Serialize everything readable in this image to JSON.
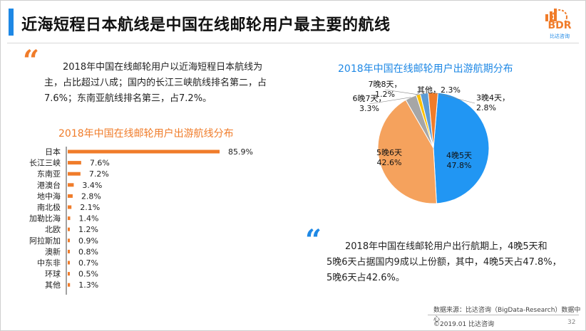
{
  "header": {
    "title": "近海短程日本航线是中国在线邮轮用户最主要的航线",
    "logo_text": "BDR",
    "logo_sub": "比达咨询",
    "accent_color": "#1e88e5",
    "logo_color": "#f07c2a"
  },
  "left_text": {
    "line1": "2018年中国在线邮轮用户以近海短程日本航线为",
    "line2": "主，占比超过八成；国内的长江三峡航线排名第二，占",
    "line3": "7.6%；东南亚航线排名第三，占7.2%。"
  },
  "right_text": {
    "line1": "2018年中国在线邮轮用户出行航期上，4晚5天和",
    "line2": "5晚6天占据国内9成以上份额，其中，4晚5天占47.8%，",
    "line3": "5晚6天占42.6%。"
  },
  "footer": {
    "source": "数据来源：比达咨询（BigData-Research）数据中心",
    "copyright": "©2019.01  比达咨询",
    "page": "32"
  },
  "chart_data": [
    {
      "type": "bar",
      "orientation": "horizontal",
      "title": "2018年中国在线邮轮用户出游航线分布",
      "categories": [
        "日本",
        "长江三峡",
        "东南亚",
        "港澳台",
        "地中海",
        "南北极",
        "加勒比海",
        "北欧",
        "阿拉斯加",
        "澳新",
        "中东非",
        "环球",
        "其他"
      ],
      "values": [
        85.9,
        7.6,
        7.2,
        3.4,
        2.8,
        2.1,
        1.4,
        1.2,
        0.9,
        0.8,
        0.7,
        0.5,
        1.3
      ],
      "value_labels": [
        "85.9%",
        "7.6%",
        "7.2%",
        "3.4%",
        "2.8%",
        "2.1%",
        "1.4%",
        "1.2%",
        "0.9%",
        "0.8%",
        "0.7%",
        "0.5%",
        "1.3%"
      ],
      "color": "#f07c2a",
      "xlim": [
        0,
        100
      ],
      "grid": false
    },
    {
      "type": "pie",
      "title": "2018年中国在线邮轮用户出游航期分布",
      "slices": [
        {
          "label": "4晚5天",
          "value": 47.8,
          "pct": "47.8%",
          "color": "#2196f3"
        },
        {
          "label": "5晚6天",
          "value": 42.6,
          "pct": "42.6%",
          "color": "#f5a25d"
        },
        {
          "label": "6晚7天",
          "value": 3.3,
          "pct": "3.3%",
          "color": "#a6a6a6"
        },
        {
          "label": "7晚8天",
          "value": 1.2,
          "pct": "1.2%",
          "color": "#ffc000"
        },
        {
          "label": "其他",
          "value": 2.3,
          "pct": "2.3%",
          "color": "#5b9bd5"
        },
        {
          "label": "3晚4天",
          "value": 2.8,
          "pct": "2.8%",
          "color": "#f07c2a"
        }
      ]
    }
  ]
}
